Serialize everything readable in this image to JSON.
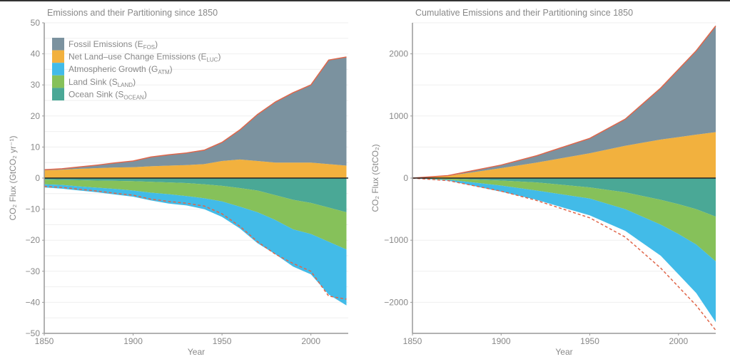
{
  "colors": {
    "fossil": "#7b929f",
    "luc": "#f2b13e",
    "atm": "#42bbe8",
    "land": "#86c15a",
    "ocean": "#4aa896",
    "line": "#e0664a",
    "zero": "#222222"
  },
  "legend": [
    {
      "key": "fossil",
      "label": "Fossil Emissions (E",
      "sub": "FOS",
      "end": ")"
    },
    {
      "key": "luc",
      "label": "Net Land–use Change Emissions (E",
      "sub": "LUC",
      "end": ")"
    },
    {
      "key": "atm",
      "label": "Atmospheric Growth (G",
      "sub": "ATM",
      "end": ")"
    },
    {
      "key": "land",
      "label": "Land Sink (S",
      "sub": "LAND",
      "end": ")"
    },
    {
      "key": "ocean",
      "label": "Ocean Sink (S",
      "sub": "OCEAN",
      "end": ")"
    }
  ],
  "chart_data": [
    {
      "type": "area",
      "title": "Emissions and their Partitioning since 1850",
      "xlabel": "Year",
      "ylabel": "CO₂ Flux (GtCO₂ yr⁻¹)",
      "xlim": [
        1850,
        2021
      ],
      "ylim": [
        -50,
        50
      ],
      "xticks": [
        1850,
        1900,
        1950,
        2000
      ],
      "yticks": [
        50,
        40,
        30,
        20,
        10,
        0,
        -10,
        -20,
        -30,
        -40,
        -50
      ],
      "legend_position": "top-left",
      "x": [
        1850,
        1860,
        1870,
        1880,
        1890,
        1900,
        1910,
        1920,
        1930,
        1940,
        1950,
        1960,
        1970,
        1980,
        1990,
        2000,
        2010,
        2020
      ],
      "series": [
        {
          "name": "fossil",
          "values": [
            0.2,
            0.3,
            0.6,
            1.0,
            1.5,
            2.0,
            3.0,
            3.5,
            3.9,
            4.5,
            6.0,
            9.5,
            15,
            19.5,
            22.5,
            25,
            33.5,
            35
          ]
        },
        {
          "name": "luc",
          "values": [
            2.5,
            2.7,
            3.0,
            3.2,
            3.4,
            3.5,
            3.8,
            4.0,
            4.2,
            4.5,
            5.5,
            6.0,
            5.5,
            5.0,
            5.0,
            5.0,
            4.5,
            4.0
          ]
        },
        {
          "name": "ocean",
          "values": [
            -0.5,
            -0.6,
            -0.7,
            -0.8,
            -0.9,
            -1.0,
            -1.2,
            -1.4,
            -1.6,
            -2.0,
            -2.5,
            -3.2,
            -4.0,
            -5.5,
            -7.0,
            -8.0,
            -9.5,
            -11
          ]
        },
        {
          "name": "land",
          "values": [
            -1.5,
            -1.6,
            -2,
            -2.3,
            -2.6,
            -3,
            -3.5,
            -3.8,
            -4.2,
            -4.5,
            -5,
            -6,
            -7,
            -8,
            -9.5,
            -10,
            -11,
            -12
          ]
        },
        {
          "name": "atm",
          "values": [
            -1,
            -1.2,
            -1.3,
            -1.5,
            -1.8,
            -2,
            -2.5,
            -3,
            -3,
            -3.5,
            -5,
            -7,
            -10,
            -11,
            -12,
            -13,
            -17,
            -18
          ]
        }
      ]
    },
    {
      "type": "area",
      "title": "Cumulative Emissions and their Partitioning since 1850",
      "xlabel": "Year",
      "ylabel": "CO₂ Flux (GtCO₂)",
      "xlim": [
        1850,
        2021
      ],
      "ylim": [
        -2500,
        2500
      ],
      "xticks": [
        1850,
        1900,
        1950,
        2000
      ],
      "yticks": [
        2000,
        1000,
        0,
        -1000,
        -2000
      ],
      "x": [
        1850,
        1870,
        1900,
        1920,
        1950,
        1970,
        1990,
        2000,
        2010,
        2021
      ],
      "series": [
        {
          "name": "fossil",
          "values": [
            0,
            5,
            50,
            110,
            240,
            430,
            830,
            1090,
            1350,
            1710
          ]
        },
        {
          "name": "luc",
          "values": [
            0,
            35,
            160,
            250,
            400,
            520,
            620,
            660,
            700,
            740
          ]
        },
        {
          "name": "ocean",
          "values": [
            0,
            -10,
            -40,
            -70,
            -150,
            -230,
            -350,
            -420,
            -500,
            -620
          ]
        },
        {
          "name": "land",
          "values": [
            0,
            -15,
            -80,
            -130,
            -180,
            -270,
            -400,
            -480,
            -570,
            -720
          ]
        },
        {
          "name": "atm",
          "values": [
            0,
            -15,
            -100,
            -150,
            -270,
            -350,
            -500,
            -650,
            -780,
            -980
          ]
        }
      ]
    }
  ]
}
